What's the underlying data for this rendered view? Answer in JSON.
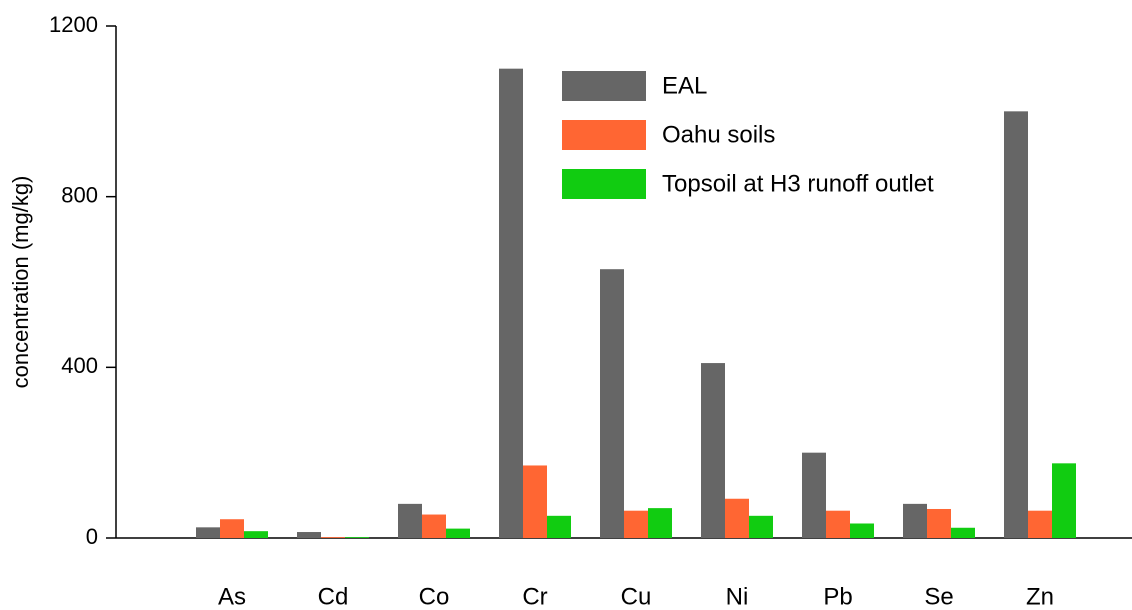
{
  "chart_data": {
    "type": "bar",
    "y_label": "concentration (mg/kg)",
    "categories": [
      "As",
      "Cd",
      "Co",
      "Cr",
      "Cu",
      "Ni",
      "Pb",
      "Se",
      "Zn"
    ],
    "series": [
      {
        "name": "EAL",
        "color": "#666666",
        "values": [
          25,
          14,
          80,
          1100,
          630,
          410,
          200,
          80,
          1000
        ]
      },
      {
        "name": "Oahu soils",
        "color": "#ff6633",
        "values": [
          44,
          2,
          55,
          170,
          64,
          92,
          64,
          68,
          64
        ]
      },
      {
        "name": "Topsoil at H3 runoff outlet",
        "color": "#11cc11",
        "values": [
          16,
          2,
          22,
          52,
          70,
          52,
          34,
          24,
          175
        ]
      }
    ],
    "ylim": [
      0,
      1200
    ],
    "yticks": [
      0,
      400,
      800,
      1200
    ],
    "grid": false
  }
}
